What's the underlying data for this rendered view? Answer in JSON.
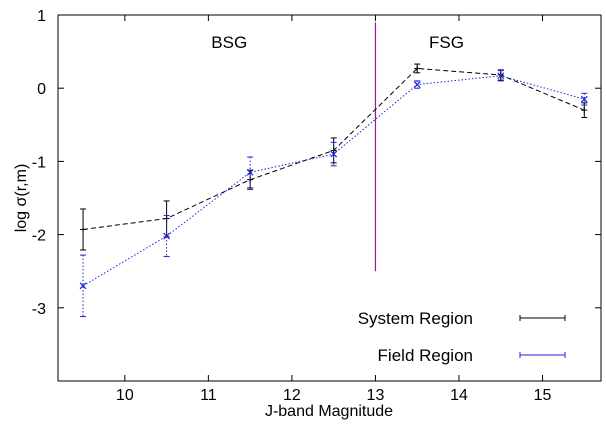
{
  "chart_data": {
    "type": "line",
    "xlabel": "J-band Magnitude",
    "ylabel": "log σ(r,m)",
    "xlim": [
      9.2,
      15.7
    ],
    "ylim": [
      -4,
      1
    ],
    "xticks": [
      10,
      11,
      12,
      13,
      14,
      15
    ],
    "yticks": [
      1,
      0,
      -1,
      -2,
      -3
    ],
    "ytick_labels": [
      "1",
      "0",
      "-1",
      "-2",
      "-3"
    ],
    "grid": false,
    "legend_position": "bottom-right",
    "annotations": [
      {
        "text": "BSG",
        "x": 11.25,
        "y": 0.55
      },
      {
        "text": "FSG",
        "x": 13.85,
        "y": 0.55
      }
    ],
    "divider": {
      "x": 13.0,
      "y_range": [
        -2.5,
        0.9
      ],
      "color": "#9b1a9b"
    },
    "series": [
      {
        "name": "System Region",
        "color": "#000000",
        "style": "dashed",
        "marker": "plus",
        "x": [
          9.5,
          10.5,
          11.5,
          12.5,
          13.5,
          14.5,
          15.5
        ],
        "y": [
          -1.93,
          -1.78,
          -1.25,
          -0.85,
          0.27,
          0.18,
          -0.3
        ],
        "yerr_low": [
          0.28,
          0.25,
          0.13,
          0.17,
          0.06,
          0.07,
          0.1
        ],
        "yerr_high": [
          0.28,
          0.24,
          0.13,
          0.17,
          0.06,
          0.07,
          0.1
        ]
      },
      {
        "name": "Field Region",
        "color": "#2222dd",
        "style": "dotted",
        "marker": "x",
        "x": [
          9.5,
          10.5,
          11.5,
          12.5,
          13.5,
          14.5,
          15.5
        ],
        "y": [
          -2.7,
          -2.02,
          -1.15,
          -0.9,
          0.05,
          0.17,
          -0.15
        ],
        "yerr_low": [
          0.42,
          0.28,
          0.21,
          0.16,
          0.05,
          0.07,
          0.08
        ],
        "yerr_high": [
          0.42,
          0.28,
          0.21,
          0.16,
          0.05,
          0.07,
          0.08
        ]
      }
    ]
  }
}
